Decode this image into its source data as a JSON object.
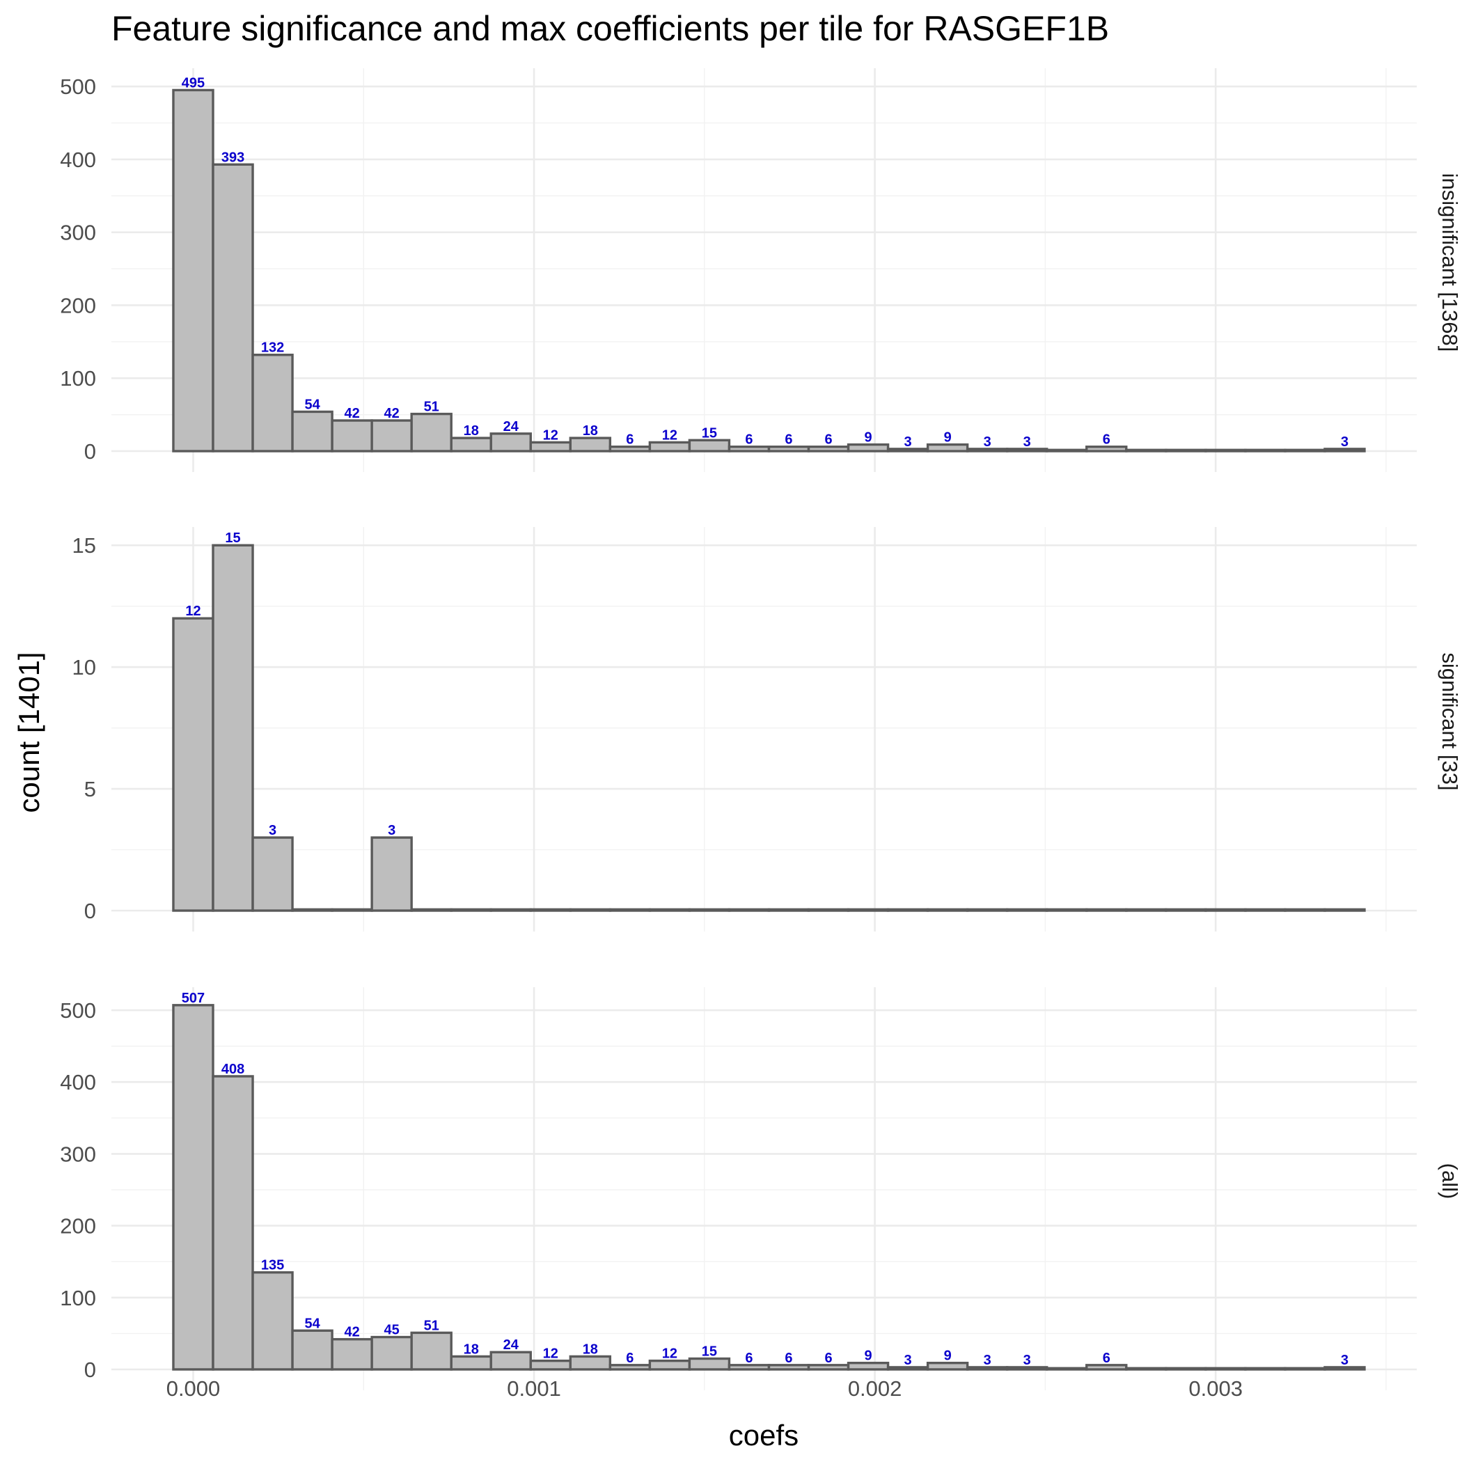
{
  "colors": {
    "bar_fill": "#bebebe",
    "bar_outline": "#5a5a5a",
    "label_text": "#0a00cc"
  },
  "chart_data": {
    "type": "bar",
    "subtype": "faceted histogram",
    "title": "Feature significance and max coefficients per tile for RASGEF1B",
    "xlabel": "coefs",
    "ylabel": "count [1401]",
    "bin_width": 0.0001165,
    "bin_centers": [
      0.0,
      0.0001165,
      0.000233,
      0.0003495,
      0.000466,
      0.0005825,
      0.000699,
      0.0008155,
      0.000932,
      0.0010485,
      0.001165,
      0.0012815,
      0.001398,
      0.0015145,
      0.001631,
      0.0017475,
      0.001864,
      0.0019805,
      0.002097,
      0.0022135,
      0.00233,
      0.0024465,
      0.002563,
      0.0026795,
      0.002796,
      0.0029125,
      0.003029,
      0.0031455,
      0.003262,
      0.0033785
    ],
    "xlim": [
      -0.00024,
      0.00359
    ],
    "xticks": [
      0.0,
      0.001,
      0.002,
      0.003
    ],
    "xtick_labels": [
      "0.000",
      "0.001",
      "0.002",
      "0.003"
    ],
    "grid": true,
    "facet_strip_position": "right",
    "panels": [
      {
        "strip_label": "insignificant [1368]",
        "ylim": [
          0,
          525
        ],
        "yticks": [
          0,
          100,
          200,
          300,
          400,
          500
        ],
        "values": [
          495,
          393,
          132,
          54,
          42,
          42,
          51,
          18,
          24,
          12,
          18,
          6,
          12,
          15,
          6,
          6,
          6,
          9,
          3,
          9,
          3,
          3,
          0,
          6,
          0,
          0,
          0,
          0,
          0,
          3
        ],
        "labels": [
          "495",
          "393",
          "132",
          "54",
          "42",
          "42",
          "51",
          "18",
          "24",
          "12",
          "18",
          "6",
          "12",
          "15",
          "6",
          "6",
          "6",
          "9",
          "3",
          "9",
          "3",
          "3",
          "",
          "6",
          "",
          "",
          "",
          "",
          "",
          "3"
        ]
      },
      {
        "strip_label": "significant [33]",
        "ylim": [
          0,
          15.75
        ],
        "yticks": [
          0,
          5,
          10,
          15
        ],
        "values": [
          12,
          15,
          3,
          0,
          0,
          3,
          0,
          0,
          0,
          0,
          0,
          0,
          0,
          0,
          0,
          0,
          0,
          0,
          0,
          0,
          0,
          0,
          0,
          0,
          0,
          0,
          0,
          0,
          0,
          0
        ],
        "labels": [
          "12",
          "15",
          "3",
          "",
          "",
          "3",
          "",
          "",
          "",
          "",
          "",
          "",
          "",
          "",
          "",
          "",
          "",
          "",
          "",
          "",
          "",
          "",
          "",
          "",
          "",
          "",
          "",
          "",
          "",
          ""
        ]
      },
      {
        "strip_label": "(all)",
        "ylim": [
          0,
          532
        ],
        "yticks": [
          0,
          100,
          200,
          300,
          400,
          500
        ],
        "values": [
          507,
          408,
          135,
          54,
          42,
          45,
          51,
          18,
          24,
          12,
          18,
          6,
          12,
          15,
          6,
          6,
          6,
          9,
          3,
          9,
          3,
          3,
          0,
          6,
          0,
          0,
          0,
          0,
          0,
          3
        ],
        "labels": [
          "507",
          "408",
          "135",
          "54",
          "42",
          "45",
          "51",
          "18",
          "24",
          "12",
          "18",
          "6",
          "12",
          "15",
          "6",
          "6",
          "6",
          "9",
          "3",
          "9",
          "3",
          "3",
          "",
          "6",
          "",
          "",
          "",
          "",
          "",
          "3"
        ]
      }
    ]
  }
}
